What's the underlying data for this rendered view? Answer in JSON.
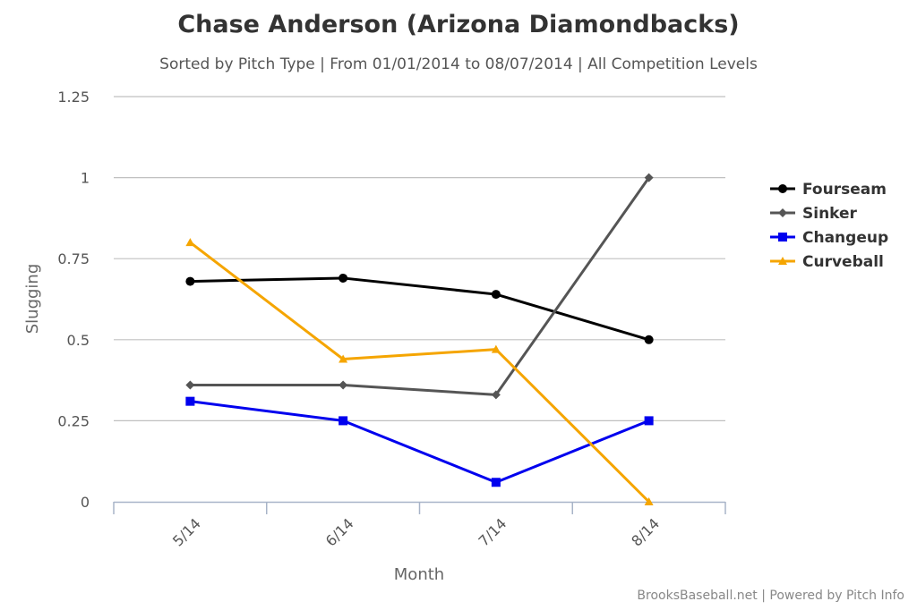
{
  "chart_data": {
    "type": "line",
    "title": "Chase Anderson (Arizona Diamondbacks)",
    "subtitle": "Sorted by Pitch Type | From 01/01/2014 to 08/07/2014 | All Competition Levels",
    "xlabel": "Month",
    "ylabel": "Slugging",
    "categories": [
      "5/14",
      "6/14",
      "7/14",
      "8/14"
    ],
    "ylim": [
      0,
      1.25
    ],
    "yticks": [
      {
        "value": 0,
        "label": "0"
      },
      {
        "value": 0.25,
        "label": "0.25"
      },
      {
        "value": 0.5,
        "label": "0.5"
      },
      {
        "value": 0.75,
        "label": "0.75"
      },
      {
        "value": 1,
        "label": "1"
      },
      {
        "value": 1.25,
        "label": "1.25"
      }
    ],
    "grid": true,
    "legend_position": "right",
    "series": [
      {
        "name": "Fourseam",
        "color": "#000000",
        "marker": "circle",
        "values": [
          0.68,
          0.69,
          0.64,
          0.5
        ]
      },
      {
        "name": "Sinker",
        "color": "#555555",
        "marker": "diamond",
        "values": [
          0.36,
          0.36,
          0.33,
          1.0
        ]
      },
      {
        "name": "Changeup",
        "color": "#0000ee",
        "marker": "square",
        "values": [
          0.31,
          0.25,
          0.06,
          0.25
        ]
      },
      {
        "name": "Curveball",
        "color": "#f5a500",
        "marker": "triangle",
        "values": [
          0.8,
          0.44,
          0.47,
          0.0
        ]
      }
    ]
  },
  "credits": "BrooksBaseball.net | Powered by Pitch Info"
}
